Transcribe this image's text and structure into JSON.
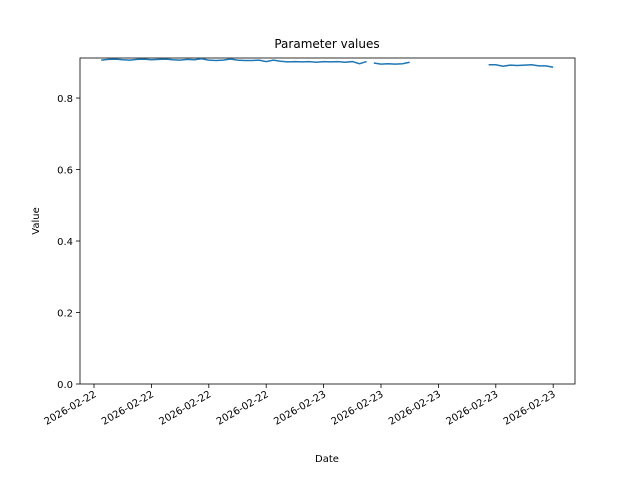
{
  "chart_data": {
    "type": "line",
    "title": "Parameter values",
    "x_label": "Date",
    "y_label": "Value",
    "x": [
      0.125,
      0.25,
      0.375,
      0.5,
      0.625,
      0.75,
      0.875,
      1,
      1.125,
      1.25,
      1.375,
      1.5,
      1.625,
      1.75,
      1.875,
      2,
      2.125,
      2.25,
      2.375,
      2.5,
      2.625,
      2.75,
      2.875,
      3,
      3.125,
      3.25,
      3.375,
      3.5,
      3.625,
      3.75,
      3.875,
      4,
      4.125,
      4.25,
      4.375,
      4.5,
      4.625,
      4.75,
      4.8125,
      4.875,
      5,
      5.125,
      5.25,
      5.375,
      5.5,
      5.625,
      6.875,
      7,
      7.125,
      7.25,
      7.375,
      7.5,
      7.625,
      7.75,
      7.875,
      8
    ],
    "series": [
      {
        "color": "#1f77b4",
        "values": [
          0.906,
          0.908,
          0.909,
          0.907,
          0.906,
          0.908,
          0.909,
          0.907,
          0.908,
          0.909,
          0.907,
          0.906,
          0.908,
          0.907,
          0.91,
          0.906,
          0.905,
          0.906,
          0.909,
          0.906,
          0.905,
          0.905,
          0.906,
          0.902,
          0.906,
          0.903,
          0.901,
          0.902,
          0.901,
          0.902,
          0.9,
          0.902,
          0.901,
          0.902,
          0.9,
          0.902,
          0.896,
          0.902,
          null,
          0.898,
          0.895,
          0.896,
          0.895,
          0.896,
          0.9,
          null,
          0.893,
          0.893,
          0.889,
          0.892,
          0.891,
          0.892,
          0.893,
          0.89,
          0.89,
          0.886
        ]
      }
    ],
    "xlim": [
      -0.244,
      8.38
    ],
    "xticks": [
      {
        "value": 0,
        "label": "2026-02-22"
      },
      {
        "value": 1,
        "label": "2026-02-22"
      },
      {
        "value": 2,
        "label": "2026-02-22"
      },
      {
        "value": 3,
        "label": "2026-02-22"
      },
      {
        "value": 4,
        "label": "2026-02-23"
      },
      {
        "value": 5,
        "label": "2026-02-23"
      },
      {
        "value": 6,
        "label": "2026-02-23"
      },
      {
        "value": 7,
        "label": "2026-02-23"
      },
      {
        "value": 8,
        "label": "2026-02-23"
      }
    ],
    "ylim": [
      0,
      0.912
    ],
    "yticks": [
      {
        "value": 0,
        "label": "0.0"
      },
      0.2,
      0.4,
      0.6,
      0.8
    ]
  }
}
